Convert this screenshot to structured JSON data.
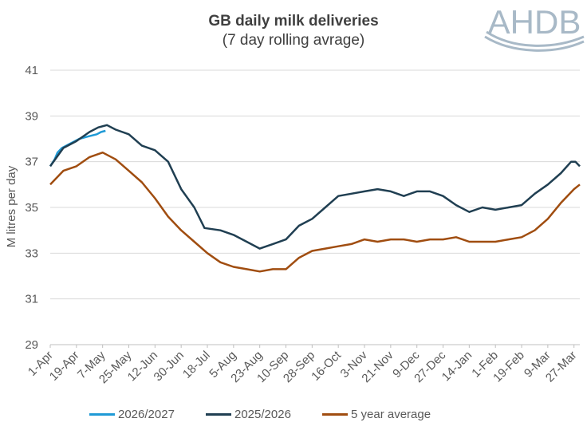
{
  "logo": {
    "text": "AHDB",
    "color": "#a8b9c7"
  },
  "chart_data": {
    "type": "line",
    "title": "GB daily milk deliveries",
    "subtitle": "(7 day rolling avrage)",
    "ylabel": "M litres per day",
    "xlabel": "",
    "ylim": [
      29,
      41
    ],
    "yticks": [
      29,
      31,
      33,
      35,
      37,
      39,
      41
    ],
    "grid": true,
    "legend_position": "bottom",
    "x_range_days": [
      0,
      364
    ],
    "categories": [
      "1-Apr",
      "19-Apr",
      "7-May",
      "25-May",
      "12-Jun",
      "30-Jun",
      "18-Jul",
      "5-Aug",
      "23-Aug",
      "10-Sep",
      "28-Sep",
      "16-Oct",
      "3-Nov",
      "21-Nov",
      "9-Dec",
      "27-Dec",
      "14-Jan",
      "1-Feb",
      "19-Feb",
      "9-Mar",
      "27-Mar"
    ],
    "series": [
      {
        "name": "2026/2027",
        "color": "#1f9ad6",
        "x": [
          "1-Apr",
          "2-Apr",
          "4-Apr",
          "6-Apr",
          "9-Apr",
          "12-Apr",
          "15-Apr",
          "18-Apr",
          "21-Apr",
          "24-Apr",
          "27-Apr",
          "30-Apr",
          "3-May",
          "6-May",
          "9-May"
        ],
        "values": [
          36.8,
          36.9,
          37.1,
          37.4,
          37.6,
          37.7,
          37.8,
          37.9,
          38.0,
          38.05,
          38.1,
          38.15,
          38.2,
          38.3,
          38.35
        ]
      },
      {
        "name": "2025/2026",
        "color": "#203f52",
        "x": [
          "1-Apr",
          "10-Apr",
          "19-Apr",
          "28-Apr",
          "4-May",
          "10-May",
          "16-May",
          "25-May",
          "3-Jun",
          "12-Jun",
          "21-Jun",
          "30-Jun",
          "9-Jul",
          "16-Jul",
          "27-Jul",
          "5-Aug",
          "14-Aug",
          "23-Aug",
          "1-Sep",
          "10-Sep",
          "19-Sep",
          "28-Sep",
          "7-Oct",
          "16-Oct",
          "25-Oct",
          "3-Nov",
          "12-Nov",
          "21-Nov",
          "30-Nov",
          "9-Dec",
          "18-Dec",
          "27-Dec",
          "5-Jan",
          "14-Jan",
          "23-Jan",
          "1-Feb",
          "10-Feb",
          "19-Feb",
          "28-Feb",
          "9-Mar",
          "18-Mar",
          "25-Mar",
          "28-Mar",
          "31-Mar"
        ],
        "values": [
          36.8,
          37.6,
          37.9,
          38.3,
          38.5,
          38.6,
          38.4,
          38.2,
          37.7,
          37.5,
          37.0,
          35.8,
          35.0,
          34.1,
          34.0,
          33.8,
          33.5,
          33.2,
          33.4,
          33.6,
          34.2,
          34.5,
          35.0,
          35.5,
          35.6,
          35.7,
          35.8,
          35.7,
          35.5,
          35.7,
          35.7,
          35.5,
          35.1,
          34.8,
          35.0,
          34.9,
          35.0,
          35.1,
          35.6,
          36.0,
          36.5,
          37.0,
          37.0,
          36.8
        ]
      },
      {
        "name": "5 year average",
        "color": "#a04d10",
        "x": [
          "1-Apr",
          "10-Apr",
          "19-Apr",
          "28-Apr",
          "7-May",
          "16-May",
          "25-May",
          "3-Jun",
          "12-Jun",
          "21-Jun",
          "30-Jun",
          "9-Jul",
          "18-Jul",
          "27-Jul",
          "5-Aug",
          "14-Aug",
          "23-Aug",
          "1-Sep",
          "10-Sep",
          "19-Sep",
          "28-Sep",
          "7-Oct",
          "16-Oct",
          "25-Oct",
          "3-Nov",
          "12-Nov",
          "21-Nov",
          "30-Nov",
          "9-Dec",
          "18-Dec",
          "27-Dec",
          "5-Jan",
          "14-Jan",
          "23-Jan",
          "1-Feb",
          "10-Feb",
          "19-Feb",
          "28-Feb",
          "9-Mar",
          "18-Mar",
          "27-Mar",
          "31-Mar"
        ],
        "values": [
          36.0,
          36.6,
          36.8,
          37.2,
          37.4,
          37.1,
          36.6,
          36.1,
          35.4,
          34.6,
          34.0,
          33.5,
          33.0,
          32.6,
          32.4,
          32.3,
          32.2,
          32.3,
          32.3,
          32.8,
          33.1,
          33.2,
          33.3,
          33.4,
          33.6,
          33.5,
          33.6,
          33.6,
          33.5,
          33.6,
          33.6,
          33.7,
          33.5,
          33.5,
          33.5,
          33.6,
          33.7,
          34.0,
          34.5,
          35.2,
          35.8,
          36.0
        ]
      }
    ]
  }
}
